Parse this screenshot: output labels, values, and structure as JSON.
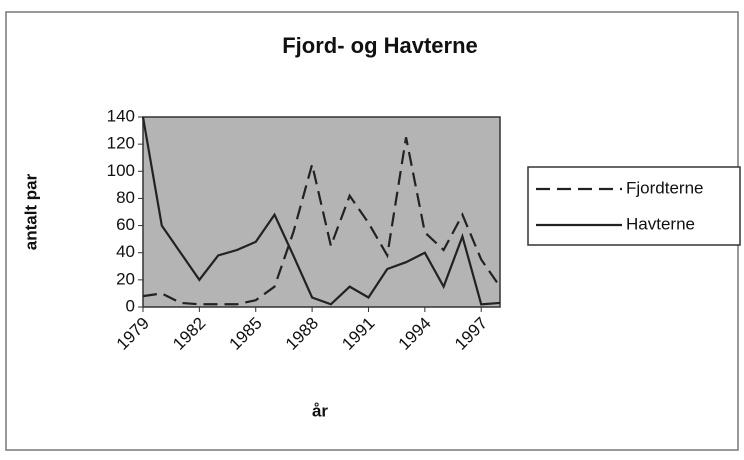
{
  "chart_data": {
    "type": "line",
    "title": "Fjord- og Havterne",
    "x_label": "år",
    "y_label": "antalt par",
    "x": [
      1979,
      1980,
      1981,
      1982,
      1983,
      1984,
      1985,
      1986,
      1987,
      1988,
      1989,
      1990,
      1991,
      1992,
      1993,
      1994,
      1995,
      1996,
      1997,
      1998
    ],
    "xlim": [
      1979,
      1998
    ],
    "xticks": [
      1979,
      1982,
      1985,
      1988,
      1991,
      1994,
      1997
    ],
    "ylim": [
      0,
      140
    ],
    "yticks": [
      0,
      20,
      40,
      60,
      80,
      100,
      120,
      140
    ],
    "plot_background": "#b4b4b4",
    "legend": "right",
    "series": [
      {
        "name": "Fjordterne",
        "color": "#222222",
        "line_style": "dashed",
        "values": [
          8,
          10,
          3,
          2,
          2,
          2,
          5,
          15,
          55,
          105,
          45,
          82,
          62,
          38,
          125,
          55,
          42,
          68,
          35,
          15
        ]
      },
      {
        "name": "Havterne",
        "color": "#222222",
        "line_style": "solid",
        "values": [
          140,
          60,
          40,
          20,
          38,
          42,
          48,
          68,
          38,
          7,
          2,
          15,
          7,
          28,
          33,
          40,
          15,
          52,
          2,
          3
        ]
      }
    ]
  }
}
